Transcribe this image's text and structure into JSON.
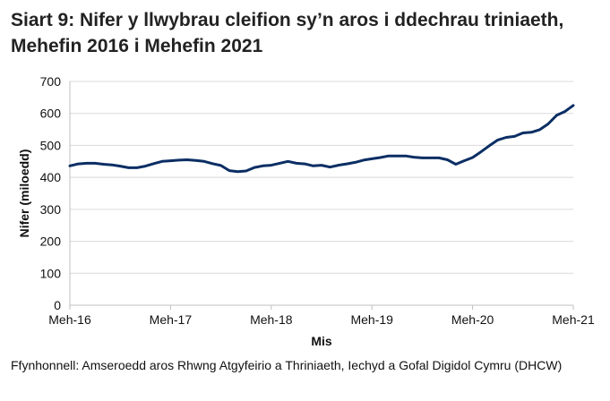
{
  "title": "Siart 9: Nifer y llwybrau cleifion sy’n aros i ddechrau triniaeth, Mehefin 2016 i Mehefin 2021",
  "source": "Ffynhonnell: Amseroedd aros Rhwng Atgyfeirio a Thriniaeth, Iechyd a Gofal Digidol Cymru (DHCW)",
  "chart_data": {
    "type": "line",
    "title": "Siart 9: Nifer y llwybrau cleifion sy’n aros i ddechrau triniaeth, Mehefin 2016 i Mehefin 2021",
    "xlabel": "Mis",
    "ylabel": "Nifer (miloedd)",
    "ylim": [
      0,
      700
    ],
    "yticks": [
      0,
      100,
      200,
      300,
      400,
      500,
      600,
      700
    ],
    "xtick_labels": [
      "Meh-16",
      "Meh-17",
      "Meh-18",
      "Meh-19",
      "Meh-20",
      "Meh-21"
    ],
    "grid": "horizontal",
    "legend": "none",
    "color": "#0b2e64",
    "x_start": "Meh-16",
    "x_end": "Meh-21",
    "frequency": "monthly",
    "values": [
      436,
      442,
      444,
      444,
      441,
      439,
      435,
      430,
      430,
      435,
      443,
      450,
      452,
      454,
      455,
      453,
      450,
      443,
      437,
      421,
      418,
      420,
      431,
      436,
      438,
      444,
      450,
      444,
      442,
      436,
      438,
      432,
      438,
      442,
      447,
      454,
      458,
      462,
      467,
      467,
      467,
      463,
      461,
      461,
      461,
      455,
      441,
      452,
      462,
      480,
      499,
      517,
      525,
      528,
      539,
      541,
      549,
      567,
      594,
      606,
      625
    ]
  }
}
